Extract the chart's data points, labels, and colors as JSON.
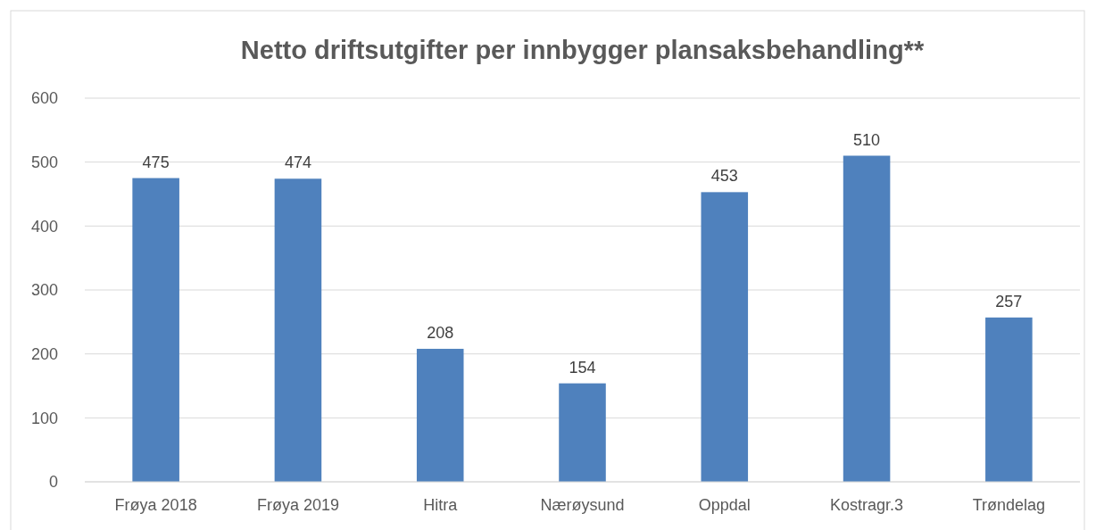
{
  "chart_data": {
    "type": "bar",
    "title": "Netto driftsutgifter per innbygger plansaksbehandling**",
    "categories": [
      "Frøya 2018",
      "Frøya 2019",
      "Hitra",
      "Nærøysund",
      "Oppdal",
      "Kostragr.3",
      "Trøndelag"
    ],
    "values": [
      475,
      474,
      208,
      154,
      453,
      510,
      257
    ],
    "color": "#4f81bd",
    "ylim": [
      0,
      600
    ],
    "yticks": [
      0,
      100,
      200,
      300,
      400,
      500,
      600
    ],
    "grid": "y",
    "data_labels": true
  }
}
